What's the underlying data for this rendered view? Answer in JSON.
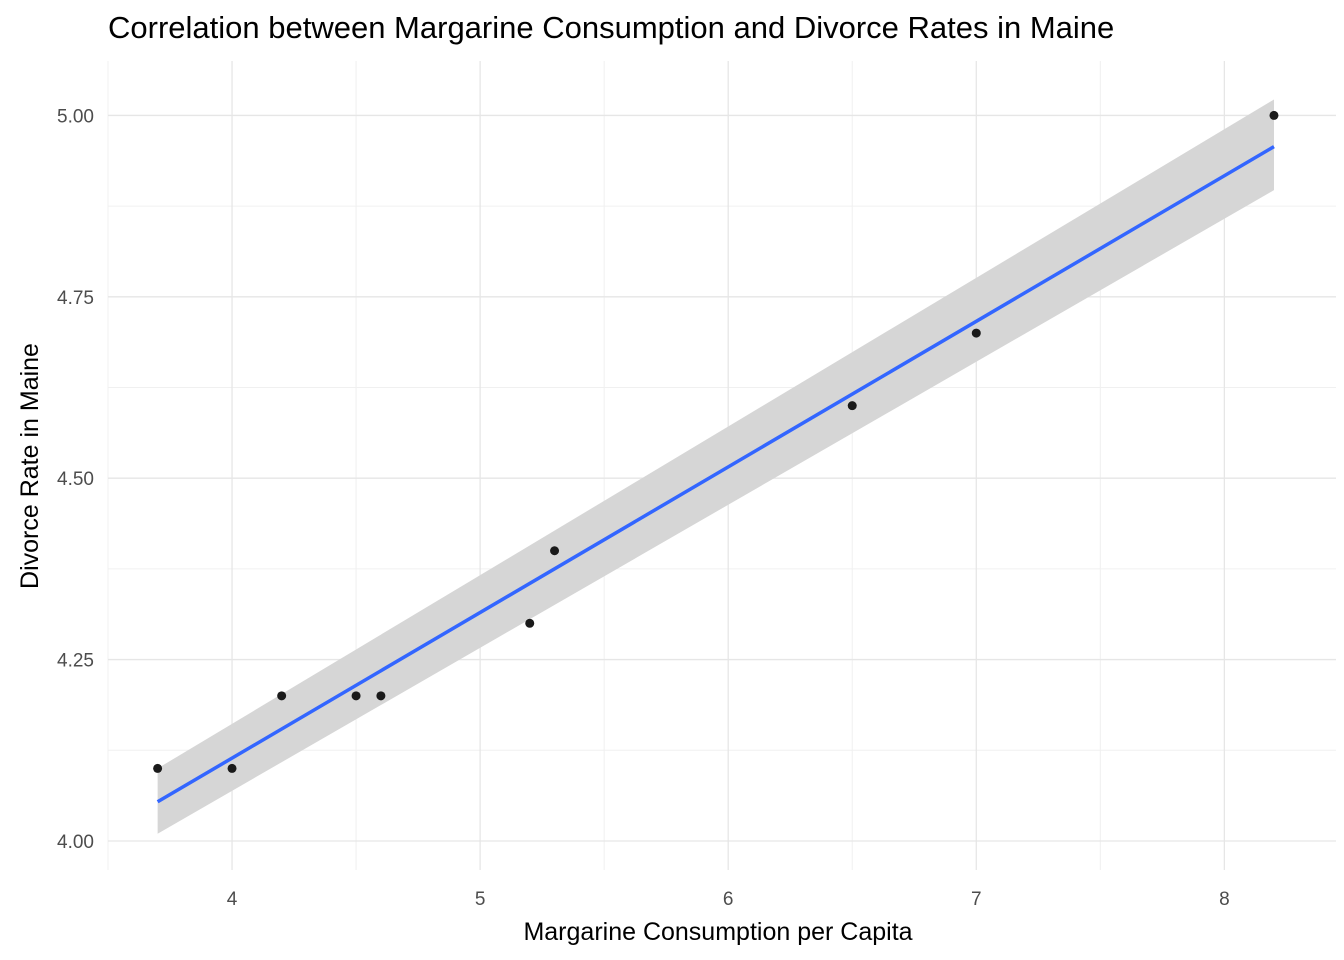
{
  "chart_data": {
    "type": "scatter",
    "title": "Correlation between Margarine Consumption and Divorce Rates in Maine",
    "xlabel": "Margarine Consumption per Capita",
    "ylabel": "Divorce Rate in Maine",
    "xlim": [
      3.5,
      8.45
    ],
    "ylim": [
      3.96,
      5.075
    ],
    "x_ticks": [
      4,
      5,
      6,
      7,
      8
    ],
    "x_tick_labels": [
      "4",
      "5",
      "6",
      "7",
      "8"
    ],
    "y_ticks": [
      4.0,
      4.25,
      4.5,
      4.75,
      5.0
    ],
    "y_tick_labels": [
      "4.00",
      "4.25",
      "4.50",
      "4.75",
      "5.00"
    ],
    "grid": true,
    "points": [
      {
        "x": 3.7,
        "y": 4.1
      },
      {
        "x": 4.0,
        "y": 4.1
      },
      {
        "x": 4.2,
        "y": 4.2
      },
      {
        "x": 4.5,
        "y": 4.2
      },
      {
        "x": 4.6,
        "y": 4.2
      },
      {
        "x": 5.2,
        "y": 4.3
      },
      {
        "x": 5.3,
        "y": 4.4
      },
      {
        "x": 6.5,
        "y": 4.6
      },
      {
        "x": 7.0,
        "y": 4.7
      },
      {
        "x": 8.2,
        "y": 5.0
      }
    ],
    "trend_line": {
      "method": "linear",
      "x": [
        3.7,
        8.2
      ],
      "y": [
        4.054,
        4.957
      ],
      "band_lower": [
        4.01,
        4.897
      ],
      "band_upper": [
        4.1,
        5.022
      ],
      "color": "#3366ff",
      "band_color": "#d6d6d6"
    },
    "point_color": "#1a1a1a"
  }
}
